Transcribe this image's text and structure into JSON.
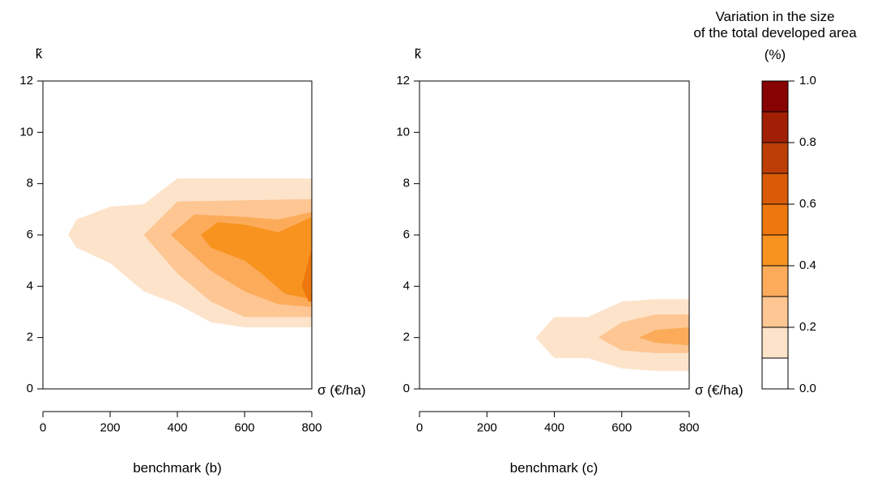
{
  "chart_data": [
    {
      "type": "heatmap",
      "subtype": "filled-contour",
      "caption": "benchmark (b)",
      "xlabel": "σ (€/ha)",
      "ylabel": "k̃",
      "xlim": [
        0,
        800
      ],
      "ylim": [
        0,
        12
      ],
      "xticks": [
        0,
        200,
        400,
        600,
        800
      ],
      "yticks": [
        0,
        2,
        4,
        6,
        8,
        10,
        12
      ],
      "grid": false,
      "regions": [
        {
          "level": [
            0.1,
            0.2
          ],
          "points": [
            [
              400,
              8.2
            ],
            [
              800,
              8.2
            ],
            [
              800,
              2.4
            ],
            [
              600,
              2.4
            ],
            [
              500,
              2.6
            ],
            [
              400,
              3.3
            ],
            [
              300,
              3.8
            ],
            [
              200,
              4.9
            ],
            [
              100,
              5.5
            ],
            [
              75,
              6.0
            ],
            [
              100,
              6.6
            ],
            [
              200,
              7.1
            ],
            [
              300,
              7.2
            ]
          ]
        },
        {
          "level": [
            0.2,
            0.3
          ],
          "points": [
            [
              300,
              6.0
            ],
            [
              400,
              7.3
            ],
            [
              800,
              7.4
            ],
            [
              800,
              2.8
            ],
            [
              600,
              2.8
            ],
            [
              500,
              3.4
            ],
            [
              400,
              4.5
            ]
          ]
        },
        {
          "level": [
            0.3,
            0.4
          ],
          "points": [
            [
              380,
              6.0
            ],
            [
              450,
              6.8
            ],
            [
              600,
              6.7
            ],
            [
              700,
              6.6
            ],
            [
              800,
              6.9
            ],
            [
              800,
              3.2
            ],
            [
              700,
              3.3
            ],
            [
              600,
              3.8
            ],
            [
              500,
              4.6
            ]
          ]
        },
        {
          "level": [
            0.4,
            0.5
          ],
          "points": [
            [
              470,
              6.0
            ],
            [
              520,
              6.5
            ],
            [
              600,
              6.4
            ],
            [
              700,
              6.1
            ],
            [
              800,
              6.7
            ],
            [
              800,
              3.5
            ],
            [
              720,
              3.7
            ],
            [
              650,
              4.5
            ],
            [
              600,
              5.0
            ],
            [
              500,
              5.5
            ]
          ]
        },
        {
          "level": [
            0.5,
            0.6
          ],
          "points": [
            [
              770,
              4.0
            ],
            [
              790,
              5.0
            ],
            [
              800,
              5.5
            ],
            [
              800,
              3.4
            ],
            [
              790,
              3.4
            ]
          ]
        }
      ]
    },
    {
      "type": "heatmap",
      "subtype": "filled-contour",
      "caption": "benchmark (c)",
      "xlabel": "σ (€/ha)",
      "ylabel": "k̃",
      "xlim": [
        0,
        800
      ],
      "ylim": [
        0,
        12
      ],
      "xticks": [
        0,
        200,
        400,
        600,
        800
      ],
      "yticks": [
        0,
        2,
        4,
        6,
        8,
        10,
        12
      ],
      "grid": false,
      "regions": [
        {
          "level": [
            0.1,
            0.2
          ],
          "points": [
            [
              345,
              2.0
            ],
            [
              400,
              2.8
            ],
            [
              500,
              2.8
            ],
            [
              600,
              3.4
            ],
            [
              700,
              3.5
            ],
            [
              800,
              3.5
            ],
            [
              800,
              0.7
            ],
            [
              700,
              0.7
            ],
            [
              600,
              0.8
            ],
            [
              500,
              1.2
            ],
            [
              400,
              1.2
            ]
          ]
        },
        {
          "level": [
            0.2,
            0.3
          ],
          "points": [
            [
              530,
              2.0
            ],
            [
              600,
              2.6
            ],
            [
              700,
              2.9
            ],
            [
              800,
              2.9
            ],
            [
              800,
              1.4
            ],
            [
              700,
              1.4
            ],
            [
              600,
              1.5
            ]
          ]
        },
        {
          "level": [
            0.3,
            0.4
          ],
          "points": [
            [
              650,
              2.0
            ],
            [
              700,
              2.3
            ],
            [
              800,
              2.4
            ],
            [
              800,
              1.7
            ],
            [
              700,
              1.8
            ]
          ]
        }
      ]
    }
  ],
  "colorbar": {
    "title_lines": [
      "Variation in the size",
      "of the total developed area",
      "(%)"
    ],
    "tick_labels": [
      "0.0",
      "0.2",
      "0.4",
      "0.6",
      "0.8",
      "1.0"
    ],
    "tick_values": [
      0.0,
      0.2,
      0.4,
      0.6,
      0.8,
      1.0
    ],
    "range": [
      0.0,
      1.0
    ],
    "levels": [
      {
        "from": 0.0,
        "to": 0.1,
        "color": "#ffffff"
      },
      {
        "from": 0.1,
        "to": 0.2,
        "color": "#fde3ca"
      },
      {
        "from": 0.2,
        "to": 0.3,
        "color": "#fdc692"
      },
      {
        "from": 0.3,
        "to": 0.4,
        "color": "#fcab5a"
      },
      {
        "from": 0.4,
        "to": 0.5,
        "color": "#f8931f"
      },
      {
        "from": 0.5,
        "to": 0.6,
        "color": "#ee780f"
      },
      {
        "from": 0.6,
        "to": 0.7,
        "color": "#d95b08"
      },
      {
        "from": 0.7,
        "to": 0.8,
        "color": "#bd3e05"
      },
      {
        "from": 0.8,
        "to": 0.9,
        "color": "#a11f04"
      },
      {
        "from": 0.9,
        "to": 1.0,
        "color": "#860203"
      }
    ]
  }
}
